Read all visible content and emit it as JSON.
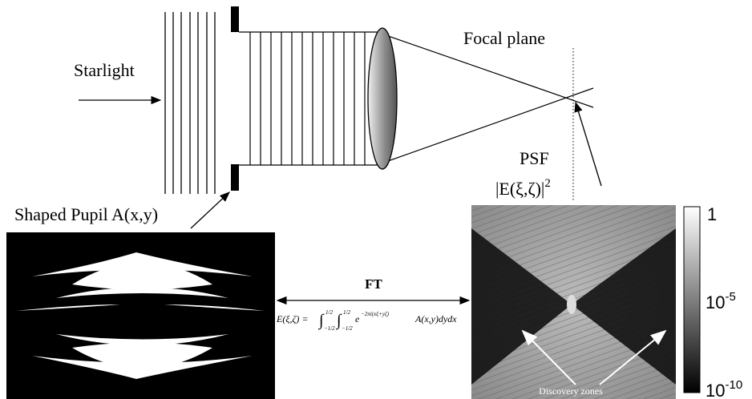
{
  "labels": {
    "starlight": "Starlight",
    "focal_plane": "Focal plane",
    "psf": "PSF",
    "psf_formula": {
      "body": "|E(ξ,ζ)|",
      "power": "2"
    },
    "shaped_pupil": "Shaped Pupil A(x,y)",
    "ft": "FT",
    "discovery_zones": "Discovery zones"
  },
  "formula": {
    "lhs": "E(ξ,ζ) =",
    "integral": "∫",
    "lower": "−1/2",
    "upper": "1/2",
    "base": "e",
    "exponent": "−2πi(xξ+yζ)",
    "tail": "A(x,y)dydx"
  },
  "colorbar": {
    "top": "1",
    "middle": {
      "base": "10",
      "exp": "-5"
    },
    "bottom": {
      "base": "10",
      "exp": "-10"
    }
  }
}
